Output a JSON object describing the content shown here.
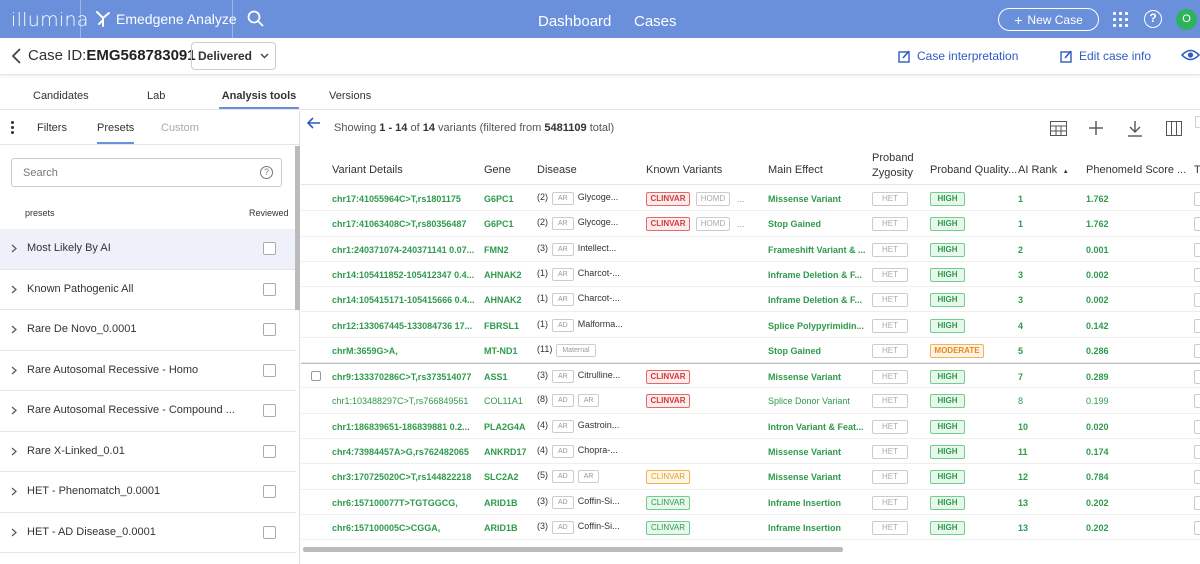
{
  "topbar": {
    "logo": "illumina",
    "product": "Emedgene Analyze",
    "nav": [
      "Dashboard",
      "Cases"
    ],
    "new_case": "New Case",
    "avatar": "O"
  },
  "casebar": {
    "case_id_label": "Case ID:",
    "case_id": "EMG568783091",
    "status": "Delivered",
    "case_interpretation": "Case interpretation",
    "edit_case_info": "Edit case info"
  },
  "tabs": [
    "Candidates",
    "Lab",
    "Analysis tools",
    "Versions"
  ],
  "sidebar": {
    "tabs": [
      "Filters",
      "Presets",
      "Custom"
    ],
    "search_placeholder": "Search",
    "col_presets": "presets",
    "col_reviewed": "Reviewed",
    "presets": [
      "Most Likely By AI",
      "Known Pathogenic All",
      "Rare De Novo_0.0001",
      "Rare Autosomal Recessive - Homo",
      "Rare Autosomal Recessive - Compound ...",
      "Rare X-Linked_0.01",
      "HET - Phenomatch_0.0001",
      "HET - AD Disease_0.0001"
    ]
  },
  "main": {
    "showing_prefix": "Showing",
    "showing_range": "1 - 14",
    "showing_of": "of",
    "showing_total": "14",
    "showing_mid": "variants (filtered from",
    "showing_filtered": "5481109",
    "showing_suffix": "total)",
    "columns": [
      "Variant Details",
      "Gene",
      "Disease",
      "Known Variants",
      "Main Effect",
      "Proband Zygosity",
      "Proband Quality...",
      "AI Rank",
      "PhenomeId Score ...",
      "T"
    ],
    "rows": [
      {
        "variant": "chr17:41055964C>T,rs1801175",
        "gene": "G6PC1",
        "dcount": "(2)",
        "chips": [
          "AR"
        ],
        "disease": "Glycoge...",
        "known": "CLINVAR",
        "known_style": "red",
        "known_extra": "HOMD",
        "effect": "Missense Variant",
        "zyg": "HET",
        "quality": "HIGH",
        "rank": "1",
        "score": "1.762",
        "bold": true
      },
      {
        "variant": "chr17:41063408C>T,rs80356487",
        "gene": "G6PC1",
        "dcount": "(2)",
        "chips": [
          "AR"
        ],
        "disease": "Glycoge...",
        "known": "CLINVAR",
        "known_style": "red",
        "known_extra": "HOMD",
        "effect": "Stop Gained",
        "zyg": "HET",
        "quality": "HIGH",
        "rank": "1",
        "score": "1.762",
        "bold": true
      },
      {
        "variant": "chr1:240371074-240371141 0.07...",
        "gene": "FMN2",
        "dcount": "(3)",
        "chips": [
          "AR"
        ],
        "disease": "Intellect...",
        "known": "",
        "known_style": "",
        "known_extra": "",
        "effect": "Frameshift Variant & ...",
        "zyg": "HET",
        "quality": "HIGH",
        "rank": "2",
        "score": "0.001",
        "bold": true
      },
      {
        "variant": "chr14:105411852-105412347 0.4...",
        "gene": "AHNAK2",
        "dcount": "(1)",
        "chips": [
          "AR"
        ],
        "disease": "Charcot-...",
        "known": "",
        "known_style": "",
        "known_extra": "",
        "effect": "Inframe Deletion & F...",
        "zyg": "HET",
        "quality": "HIGH",
        "rank": "3",
        "score": "0.002",
        "bold": true
      },
      {
        "variant": "chr14:105415171-105415666 0.4...",
        "gene": "AHNAK2",
        "dcount": "(1)",
        "chips": [
          "AR"
        ],
        "disease": "Charcot-...",
        "known": "",
        "known_style": "",
        "known_extra": "",
        "effect": "Inframe Deletion & F...",
        "zyg": "HET",
        "quality": "HIGH",
        "rank": "3",
        "score": "0.002",
        "bold": true
      },
      {
        "variant": "chr12:133067445-133084736 17...",
        "gene": "FBRSL1",
        "dcount": "(1)",
        "chips": [
          "AD"
        ],
        "disease": "Malforma...",
        "known": "",
        "known_style": "",
        "known_extra": "",
        "effect": "Splice Polypyrimidin...",
        "zyg": "HET",
        "quality": "HIGH",
        "rank": "4",
        "score": "0.142",
        "bold": true
      },
      {
        "variant": "chrM:3659G>A,",
        "gene": "MT-ND1",
        "dcount": "(11)",
        "chips": [
          "Maternal"
        ],
        "disease": "",
        "known": "",
        "known_style": "",
        "known_extra": "",
        "effect": "Stop Gained",
        "zyg": "HET",
        "quality": "MODERATE",
        "rank": "5",
        "score": "0.286",
        "bold": true
      },
      {
        "variant": "chr9:133370286C>T,rs373514077",
        "gene": "ASS1",
        "dcount": "(3)",
        "chips": [
          "AR"
        ],
        "disease": "Citrulline...",
        "known": "CLINVAR",
        "known_style": "red",
        "known_extra": "",
        "effect": "Missense Variant",
        "zyg": "HET",
        "quality": "HIGH",
        "rank": "7",
        "score": "0.289",
        "bold": true
      },
      {
        "variant": "chr1:103488297C>T,rs766849561",
        "gene": "COL11A1",
        "dcount": "(8)",
        "chips": [
          "AD",
          "AR"
        ],
        "disease": "",
        "known": "CLINVAR",
        "known_style": "red",
        "known_extra": "",
        "effect": "Splice Donor Variant",
        "zyg": "HET",
        "quality": "HIGH",
        "rank": "8",
        "score": "0.199",
        "bold": false
      },
      {
        "variant": "chr1:186839651-186839881 0.2...",
        "gene": "PLA2G4A",
        "dcount": "(4)",
        "chips": [
          "AR"
        ],
        "disease": "Gastroin...",
        "known": "",
        "known_style": "",
        "known_extra": "",
        "effect": "Intron Variant & Feat...",
        "zyg": "HET",
        "quality": "HIGH",
        "rank": "10",
        "score": "0.020",
        "bold": true
      },
      {
        "variant": "chr4:73984457A>G,rs762482065",
        "gene": "ANKRD17",
        "dcount": "(4)",
        "chips": [
          "AD"
        ],
        "disease": "Chopra-...",
        "known": "",
        "known_style": "",
        "known_extra": "",
        "effect": "Missense Variant",
        "zyg": "HET",
        "quality": "HIGH",
        "rank": "11",
        "score": "0.174",
        "bold": true
      },
      {
        "variant": "chr3:170725020C>T,rs144822218",
        "gene": "SLC2A2",
        "dcount": "(5)",
        "chips": [
          "AD",
          "AR"
        ],
        "disease": "",
        "known": "CLINVAR",
        "known_style": "orange",
        "known_extra": "",
        "effect": "Missense Variant",
        "zyg": "HET",
        "quality": "HIGH",
        "rank": "12",
        "score": "0.784",
        "bold": true
      },
      {
        "variant": "chr6:157100077T>TGTGGCG,",
        "gene": "ARID1B",
        "dcount": "(3)",
        "chips": [
          "AD"
        ],
        "disease": "Coffin-Si...",
        "known": "CLINVAR",
        "known_style": "green",
        "known_extra": "",
        "effect": "Inframe Insertion",
        "zyg": "HET",
        "quality": "HIGH",
        "rank": "13",
        "score": "0.202",
        "bold": true
      },
      {
        "variant": "chr6:157100005C>CGGA,",
        "gene": "ARID1B",
        "dcount": "(3)",
        "chips": [
          "AD"
        ],
        "disease": "Coffin-Si...",
        "known": "CLINVAR",
        "known_style": "green",
        "known_extra": "",
        "effect": "Inframe Insertion",
        "zyg": "HET",
        "quality": "HIGH",
        "rank": "13",
        "score": "0.202",
        "bold": true
      }
    ]
  }
}
